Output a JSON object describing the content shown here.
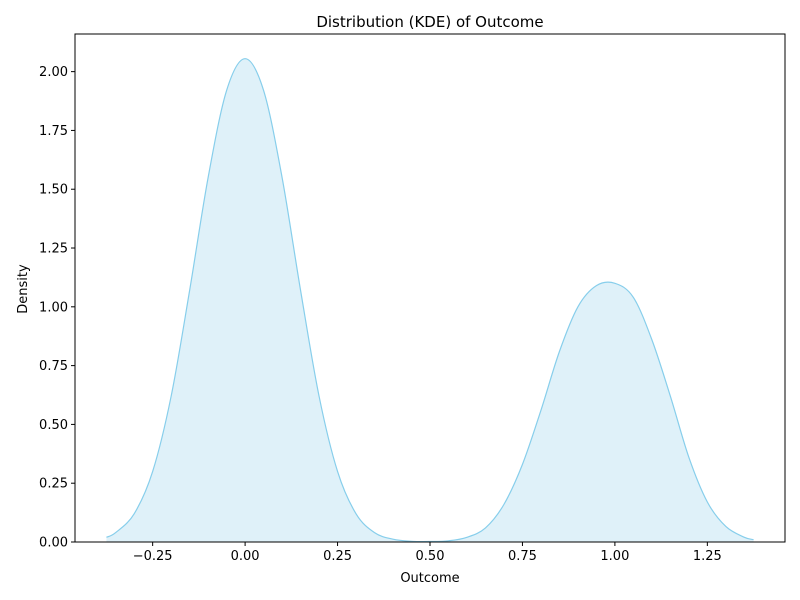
{
  "chart_data": {
    "type": "area",
    "title": "Distribution (KDE) of Outcome",
    "xlabel": "Outcome",
    "ylabel": "Density",
    "xlim": [
      -0.46,
      1.46
    ],
    "ylim": [
      0,
      2.16
    ],
    "x_ticks": [
      -0.25,
      0.0,
      0.25,
      0.5,
      0.75,
      1.0,
      1.25
    ],
    "x_tick_labels": [
      "−0.25",
      "0.00",
      "0.25",
      "0.50",
      "0.75",
      "1.00",
      "1.25"
    ],
    "y_ticks": [
      0.0,
      0.25,
      0.5,
      0.75,
      1.0,
      1.25,
      1.5,
      1.75,
      2.0
    ],
    "y_tick_labels": [
      "0.00",
      "0.25",
      "0.50",
      "0.75",
      "1.00",
      "1.25",
      "1.50",
      "1.75",
      "2.00"
    ],
    "grid": false,
    "series": [
      {
        "x": [
          -0.375,
          -0.35,
          -0.3,
          -0.25,
          -0.2,
          -0.15,
          -0.1,
          -0.05,
          0.0,
          0.05,
          0.1,
          0.15,
          0.2,
          0.25,
          0.3,
          0.35,
          0.4,
          0.45,
          0.5,
          0.55,
          0.6,
          0.65,
          0.7,
          0.75,
          0.8,
          0.85,
          0.9,
          0.95,
          1.0,
          1.05,
          1.1,
          1.15,
          1.2,
          1.25,
          1.3,
          1.35,
          1.375
        ],
        "y": [
          0.02,
          0.04,
          0.12,
          0.3,
          0.62,
          1.07,
          1.55,
          1.92,
          2.055,
          1.92,
          1.55,
          1.07,
          0.62,
          0.3,
          0.12,
          0.04,
          0.012,
          0.003,
          0.002,
          0.005,
          0.02,
          0.06,
          0.16,
          0.33,
          0.56,
          0.81,
          1.0,
          1.09,
          1.1,
          1.04,
          0.86,
          0.62,
          0.36,
          0.17,
          0.066,
          0.02,
          0.01
        ]
      }
    ],
    "colors": {
      "line": "#87ceeb",
      "fill": "#dff1f9",
      "axis": "#000000"
    }
  }
}
